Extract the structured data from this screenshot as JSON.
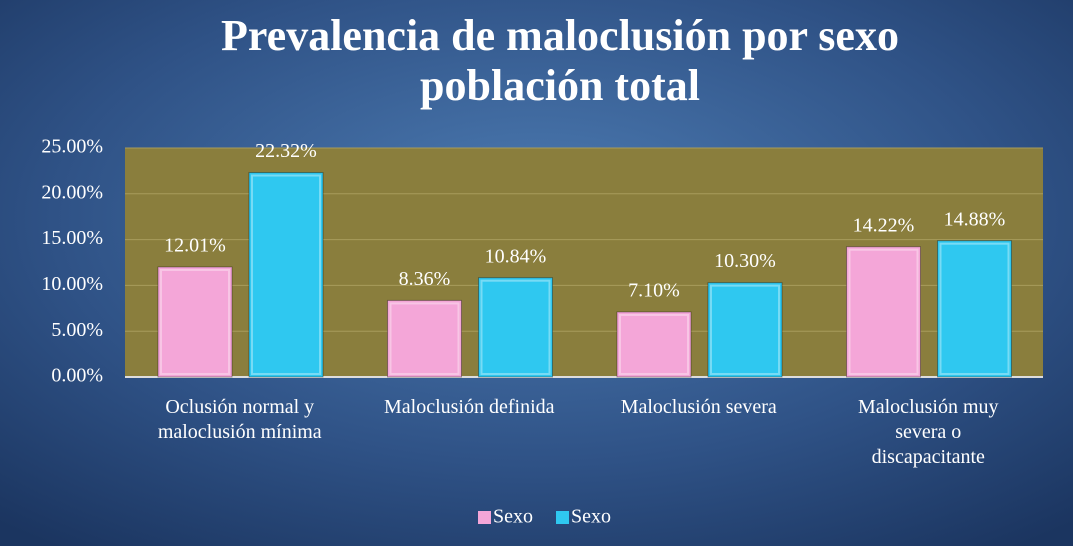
{
  "chart_data": {
    "type": "bar",
    "title": [
      "Prevalencia de maloclusión por sexo",
      "población total"
    ],
    "categories": [
      "Oclusión normal y maloclusión mínima",
      "Maloclusión definida",
      "Maloclusión severa",
      "Maloclusión muy severa o discapacitante"
    ],
    "series": [
      {
        "name": "Sexo",
        "color": "#f4a6d8",
        "values": [
          12.01,
          8.36,
          7.1,
          14.22
        ],
        "value_labels": [
          "12.01%",
          "8.36%",
          "7.10%",
          "14.22%"
        ]
      },
      {
        "name": "Sexo",
        "color": "#2fc8f0",
        "values": [
          22.32,
          10.84,
          10.3,
          14.88
        ],
        "value_labels": [
          "22.32%",
          "10.84%",
          "10.30%",
          "14.88%"
        ]
      }
    ],
    "ylim": [
      0,
      25
    ],
    "yticks": [
      {
        "value": 0,
        "label": "0.00%"
      },
      {
        "value": 5,
        "label": "5.00%"
      },
      {
        "value": 10,
        "label": "10.00%"
      },
      {
        "value": 15,
        "label": "15.00%"
      },
      {
        "value": 20,
        "label": "20.00%"
      },
      {
        "value": 25,
        "label": "25.00%"
      }
    ],
    "grid": true,
    "legend": "bottom"
  }
}
